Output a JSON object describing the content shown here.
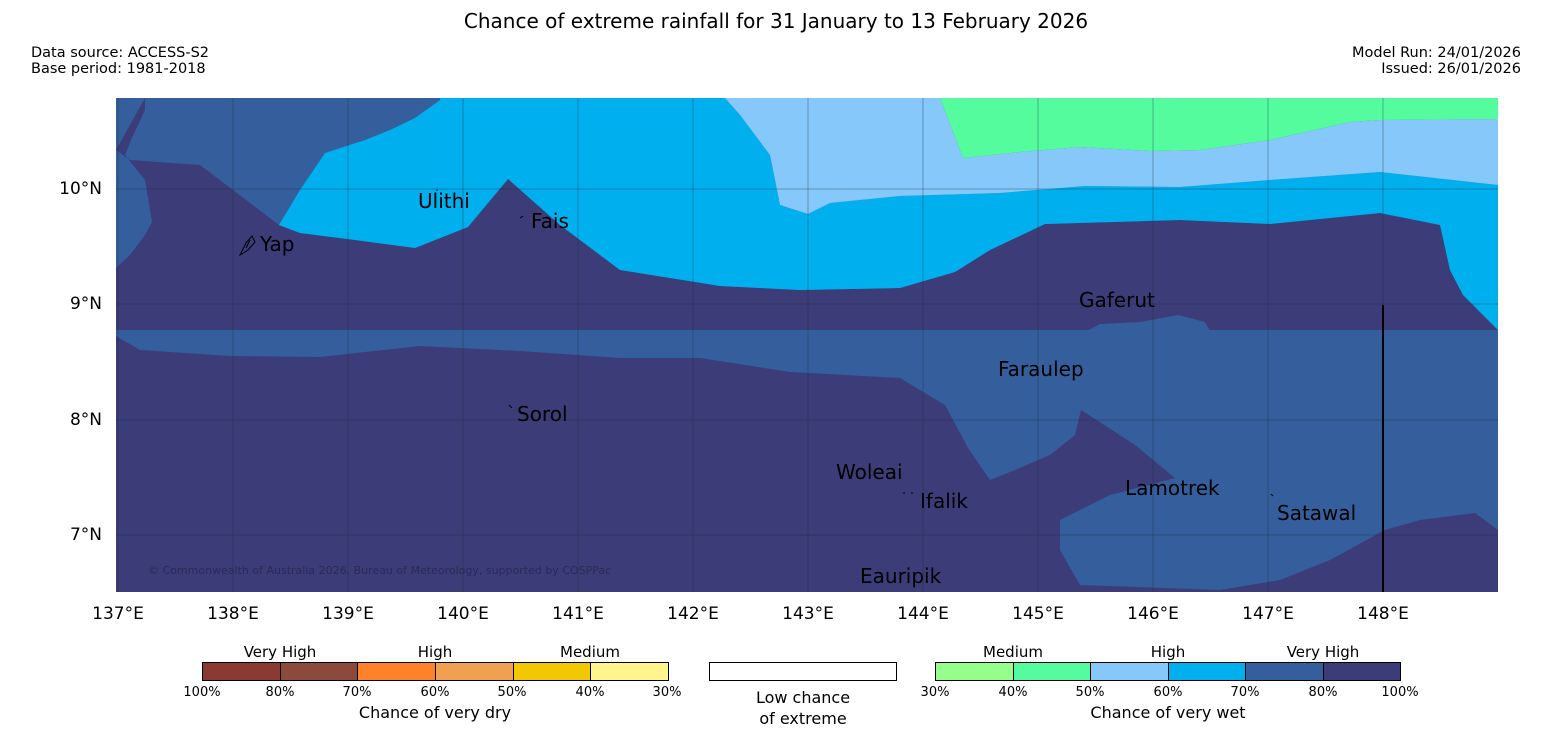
{
  "header": {
    "title": "Chance of extreme rainfall for 31 January to 13 February 2026",
    "data_source": "Data source: ACCESS-S2",
    "base_period": "Base period: 1981-2018",
    "model_run": "Model Run: 24/01/2026",
    "issued": "Issued: 26/01/2026"
  },
  "map": {
    "lon_labels": [
      "137°E",
      "138°E",
      "139°E",
      "140°E",
      "141°E",
      "142°E",
      "143°E",
      "144°E",
      "145°E",
      "146°E",
      "147°E",
      "148°E"
    ],
    "lat_labels": [
      "10°N",
      "9°N",
      "8°N",
      "7°N"
    ],
    "islands": [
      {
        "name": "Yap"
      },
      {
        "name": "Ulithi"
      },
      {
        "name": "Fais"
      },
      {
        "name": "Sorol"
      },
      {
        "name": "Gaferut"
      },
      {
        "name": "Faraulep"
      },
      {
        "name": "Woleai"
      },
      {
        "name": "Ifalik"
      },
      {
        "name": "Lamotrek"
      },
      {
        "name": "Satawal"
      },
      {
        "name": "Eauripik"
      }
    ],
    "copyright": "© Commonwealth of Australia 2026, Bureau of Meteorology, supported by COSPPac",
    "colors": {
      "wet_100": "#3c3c78",
      "wet_80": "#345e9c",
      "wet_70": "#00b0ee",
      "wet_60": "#86c8fa",
      "wet_50": "#55fc9e",
      "grid": "#1a2a3a"
    }
  },
  "legend": {
    "dry": {
      "categories": [
        "Very High",
        "High",
        "Medium"
      ],
      "ticks": [
        "100%",
        "80%",
        "70%",
        "60%",
        "50%",
        "40%",
        "30%"
      ],
      "colors": [
        "#8b3a32",
        "#8b4a3c",
        "#ff8228",
        "#f0a050",
        "#f2c800",
        "#fff58c"
      ],
      "caption": "Chance of very dry"
    },
    "neutral": {
      "caption_line1": "Low chance",
      "caption_line2": "of extreme"
    },
    "wet": {
      "categories": [
        "Medium",
        "High",
        "Very High"
      ],
      "ticks": [
        "30%",
        "40%",
        "50%",
        "60%",
        "70%",
        "80%",
        "100%"
      ],
      "colors": [
        "#96ff8c",
        "#55fc9e",
        "#86c8fa",
        "#00b0ee",
        "#345e9c",
        "#3c3c78"
      ],
      "caption": "Chance of very wet"
    }
  }
}
